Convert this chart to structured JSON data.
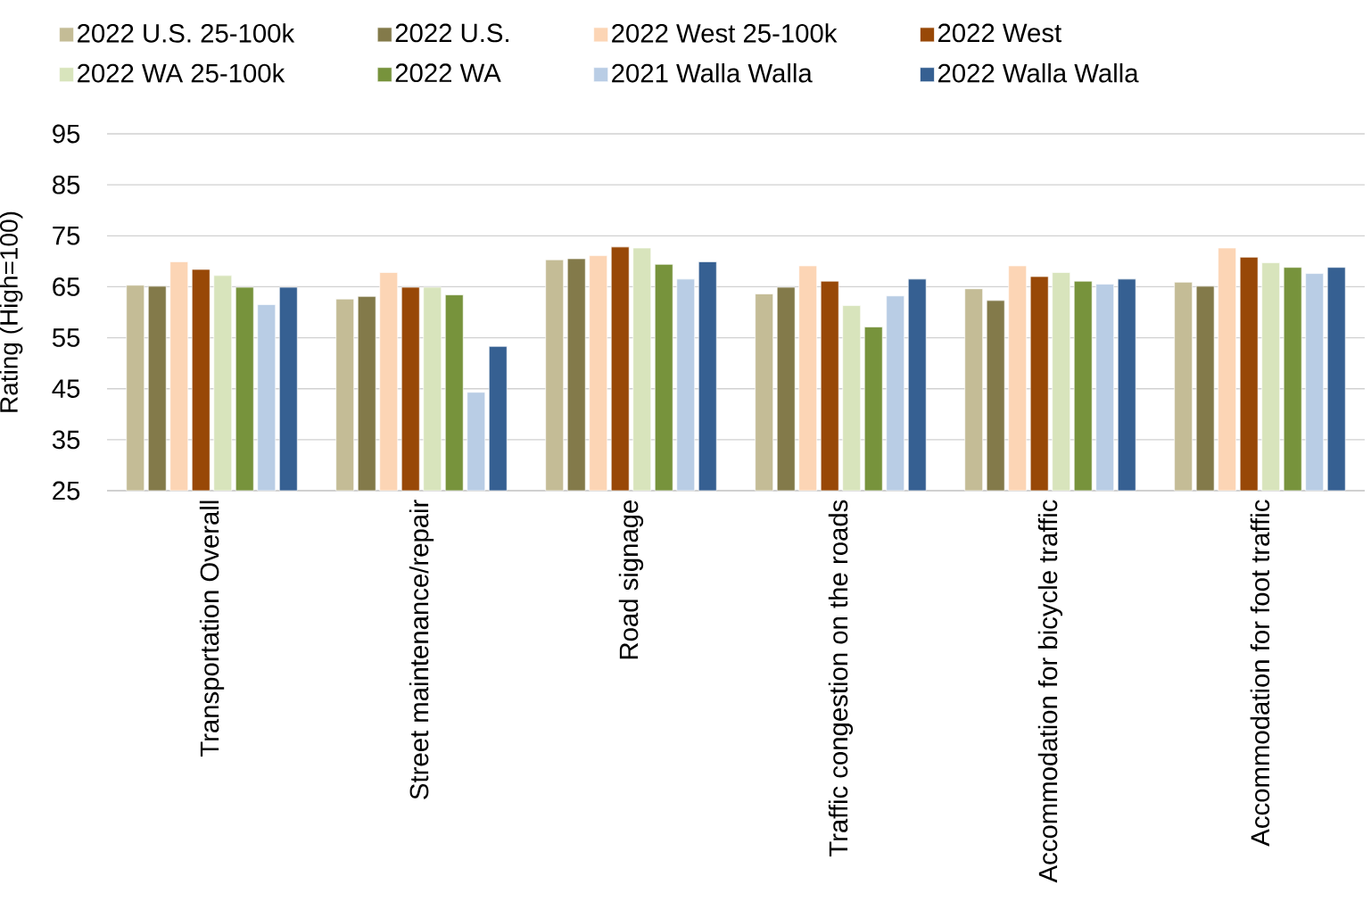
{
  "chart_data": {
    "type": "bar",
    "ylabel": "Rating (High=100)",
    "categories": [
      "Transportation Overall",
      "Street maintenance/repair",
      "Road signage",
      "Traffic congestion on the roads",
      "Accommodation for bicycle traffic",
      "Accommodation for foot traffic"
    ],
    "series": [
      {
        "name": "2022 U.S. 25-100k",
        "color": "#c4bc96",
        "values": [
          65.3,
          62.6,
          70.3,
          63.6,
          64.6,
          65.9
        ]
      },
      {
        "name": "2022 U.S.",
        "color": "#837a4a",
        "values": [
          65.1,
          63.1,
          70.5,
          64.9,
          62.3,
          65.1
        ]
      },
      {
        "name": "2022 West 25-100k",
        "color": "#fcd5b5",
        "values": [
          69.9,
          67.8,
          71.1,
          69.1,
          69.1,
          72.6
        ]
      },
      {
        "name": "2022 West",
        "color": "#984807",
        "values": [
          68.4,
          64.9,
          72.8,
          66.1,
          67.0,
          70.8
        ]
      },
      {
        "name": "2022 WA 25-100k",
        "color": "#d8e4bc",
        "values": [
          67.2,
          64.9,
          72.6,
          61.3,
          67.8,
          69.7
        ]
      },
      {
        "name": "2022 WA",
        "color": "#77933c",
        "values": [
          64.9,
          63.4,
          69.4,
          57.1,
          66.1,
          68.8
        ]
      },
      {
        "name": "2021 Walla Walla",
        "color": "#b9cde5",
        "values": [
          61.5,
          44.3,
          66.5,
          63.2,
          65.5,
          67.6
        ]
      },
      {
        "name": "2022 Walla Walla",
        "color": "#366092",
        "values": [
          64.9,
          53.3,
          69.9,
          66.5,
          66.5,
          68.8
        ]
      }
    ],
    "ylim": [
      25,
      95
    ],
    "yticks": [
      25,
      35,
      45,
      55,
      65,
      75,
      85,
      95
    ],
    "grid": "y",
    "legend": "top"
  }
}
